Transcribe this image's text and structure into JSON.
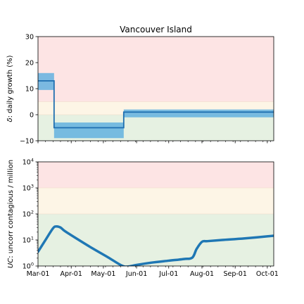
{
  "chart_data": [
    {
      "type": "step",
      "title": "Vancouver Island",
      "ylabel_html": "δ: daily growth (%)",
      "ylabel_greek": "δ",
      "ylabel_rest": ": daily growth (%)",
      "ylim": [
        -10,
        30
      ],
      "yticks": [
        -10,
        0,
        10,
        20,
        30
      ],
      "yticklabels": [
        "−10",
        "0",
        "10",
        "20",
        "30"
      ],
      "bands": [
        {
          "name": "red",
          "from": 5,
          "to": 30,
          "color": "#fde4e4"
        },
        {
          "name": "yellow",
          "from": 0,
          "to": 5,
          "color": "#fdf5e6"
        },
        {
          "name": "green",
          "from": -10,
          "to": 0,
          "color": "#e6f1e2"
        }
      ],
      "segments": [
        {
          "start": "2020-03-01",
          "end": "2020-03-16",
          "value": 13,
          "low": 9.5,
          "high": 16
        },
        {
          "start": "2020-03-16",
          "end": "2020-05-20",
          "value": -5,
          "low": -9,
          "high": -3
        },
        {
          "start": "2020-05-20",
          "end": "2020-10-07",
          "value": 1,
          "low": -1,
          "high": 2
        }
      ],
      "line_color": "#1f6fb0",
      "band_color": "#5aaee0"
    },
    {
      "type": "line",
      "ylabel_html": "UC: uncorr contagious / million",
      "ylabel_italic": "UC",
      "ylabel_rest": ": uncorr contagious / million",
      "yscale": "log",
      "ylim": [
        1,
        10000
      ],
      "yticks": [
        1,
        10,
        100,
        1000,
        10000
      ],
      "yticklabel_base": "10",
      "yticklabel_exps": [
        "0",
        "1",
        "2",
        "3",
        "4"
      ],
      "bands": [
        {
          "name": "red",
          "from": 1000,
          "to": 10000,
          "color": "#fde4e4"
        },
        {
          "name": "yellow",
          "from": 100,
          "to": 1000,
          "color": "#fdf5e6"
        },
        {
          "name": "green",
          "from": 1,
          "to": 100,
          "color": "#e6f1e2"
        }
      ],
      "x_dates": [
        "2020-03-01",
        "2020-03-08",
        "2020-03-15",
        "2020-03-18",
        "2020-03-22",
        "2020-03-26",
        "2020-04-05",
        "2020-04-20",
        "2020-05-05",
        "2020-05-18",
        "2020-05-24",
        "2020-06-01",
        "2020-06-15",
        "2020-07-01",
        "2020-07-15",
        "2020-07-23",
        "2020-07-27",
        "2020-08-01",
        "2020-08-06",
        "2020-08-20",
        "2020-09-10",
        "2020-10-07"
      ],
      "values": [
        3.5,
        10,
        28,
        33,
        30,
        22,
        12,
        5,
        2.2,
        1.05,
        0.95,
        1.1,
        1.35,
        1.6,
        1.85,
        2.1,
        4.5,
        8.5,
        9.0,
        10,
        11.5,
        14.5
      ],
      "line_color": "#1f77b4"
    }
  ],
  "xaxis": {
    "start": "2020-03-01",
    "end": "2020-10-07",
    "ticks": [
      "2020-03-01",
      "2020-04-01",
      "2020-05-01",
      "2020-06-01",
      "2020-07-01",
      "2020-08-01",
      "2020-09-01",
      "2020-10-01"
    ],
    "ticklabels": [
      "Mar-01",
      "Apr-01",
      "May-01",
      "Jun-01",
      "Jul-01",
      "Aug-01",
      "Sep-01",
      "Oct-01"
    ],
    "minor_interval_days": 7
  }
}
